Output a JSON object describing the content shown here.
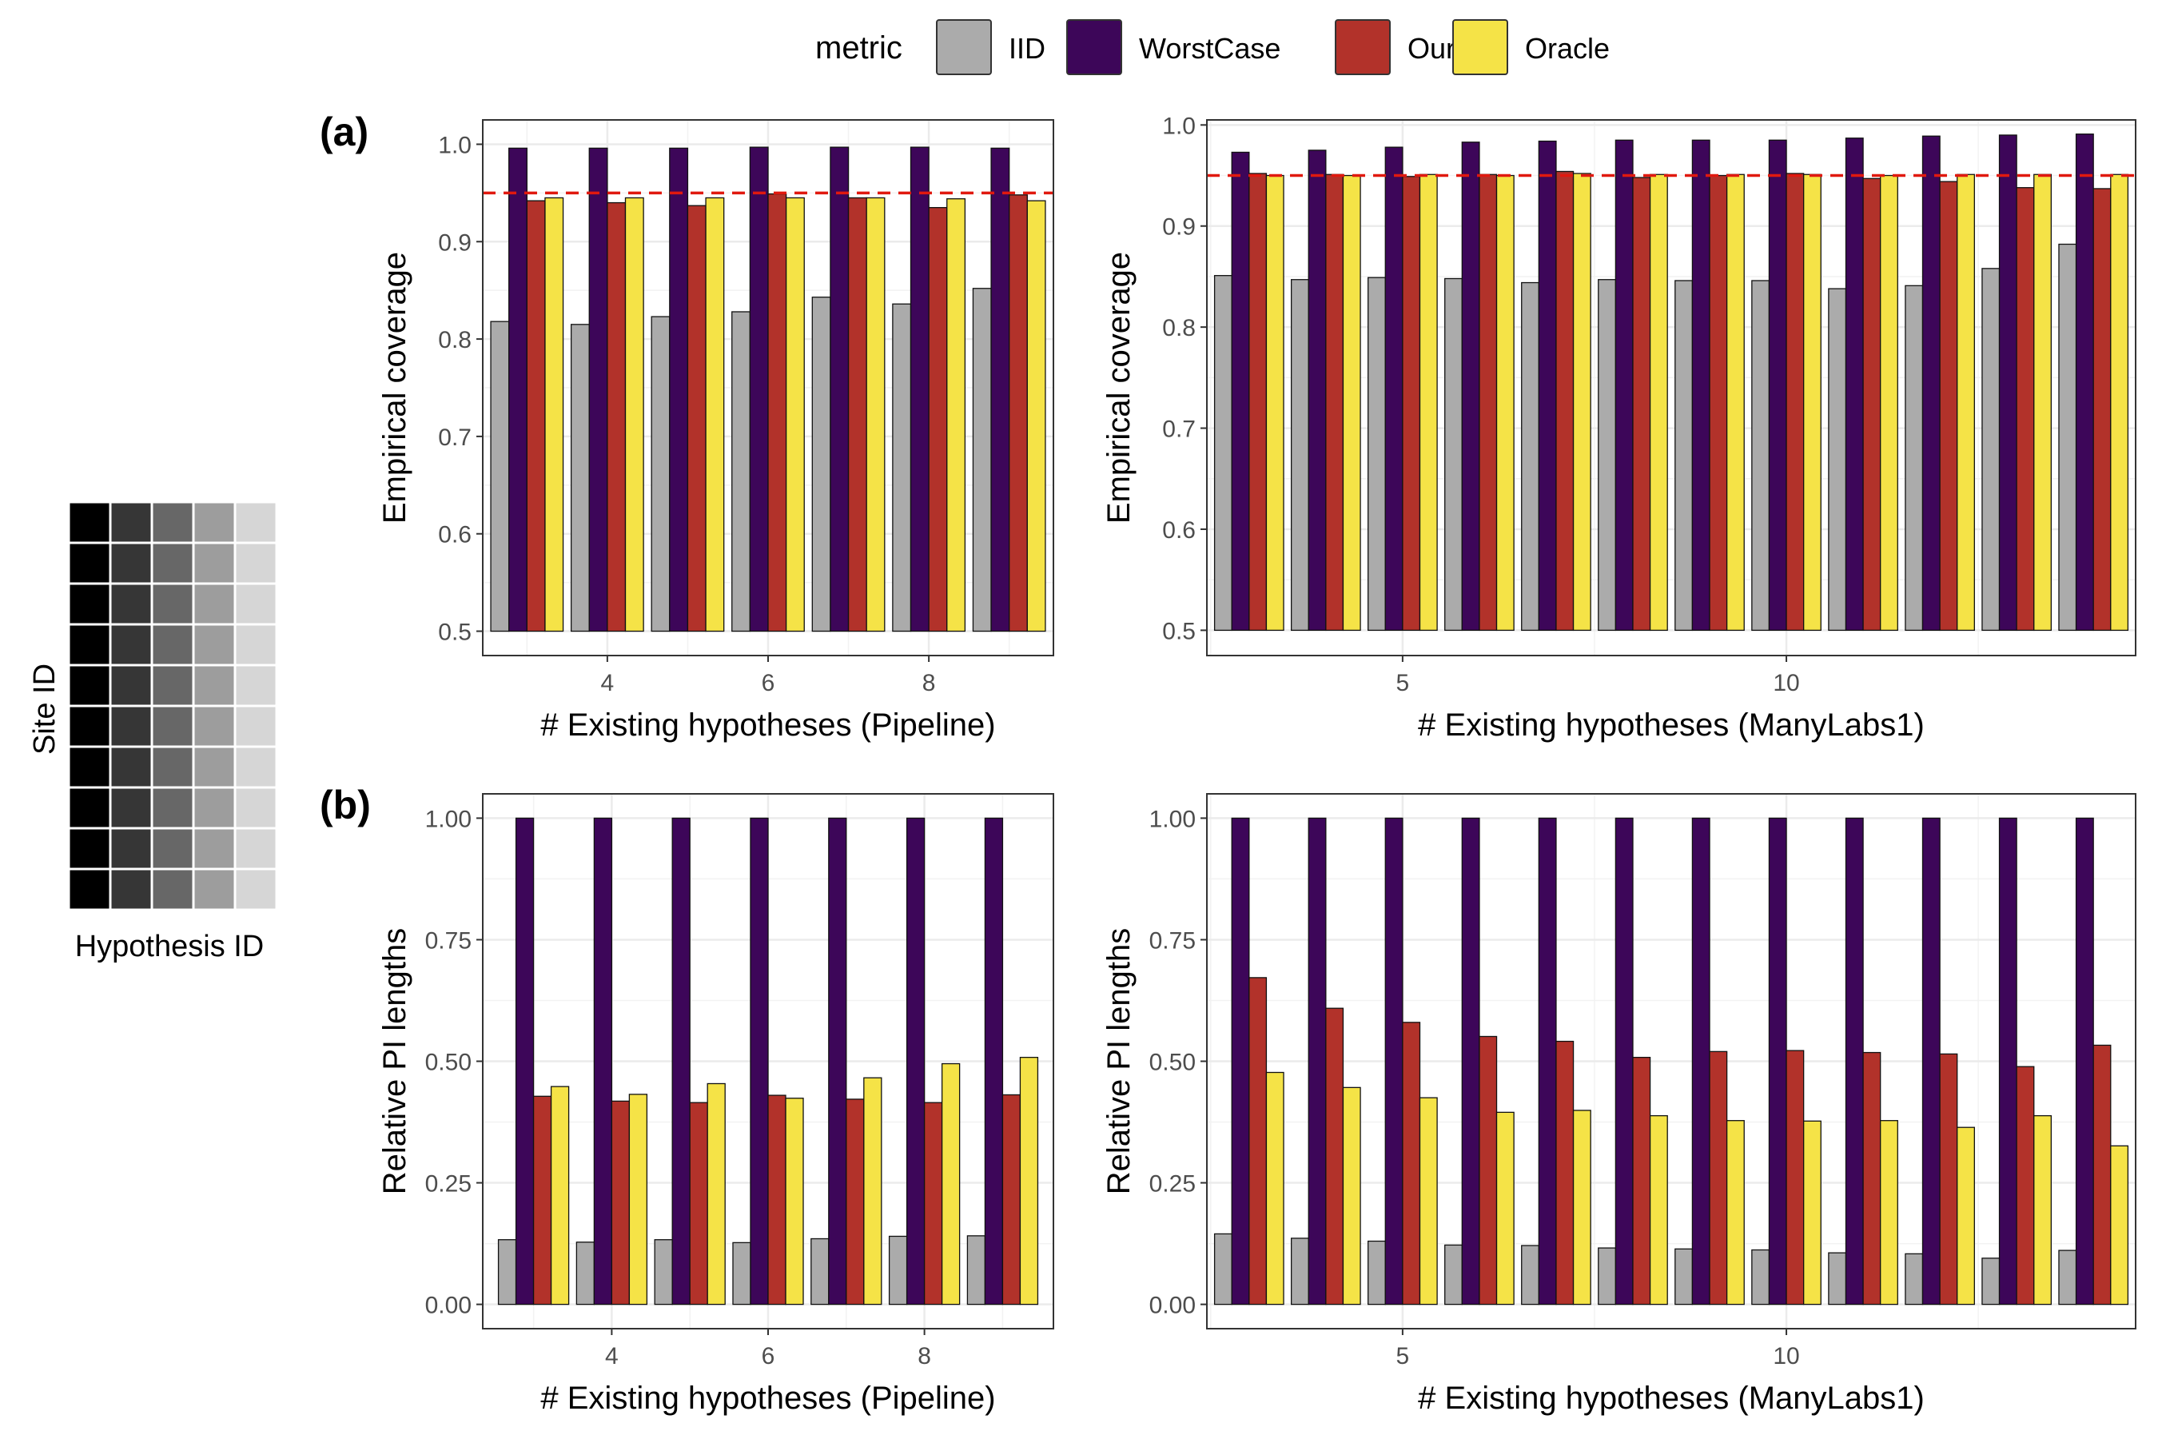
{
  "legend": {
    "title": "metric",
    "items": [
      {
        "name": "IID",
        "color": "#ABABAB"
      },
      {
        "name": "WorstCase",
        "color": "#3D0659"
      },
      {
        "name": "Ours",
        "color": "#B2322A"
      },
      {
        "name": "Oracle",
        "color": "#F5E347"
      }
    ]
  },
  "schematic": {
    "y_label": "Site ID",
    "x_label": "Hypothesis ID",
    "rows": 10,
    "column_shades": [
      "#000000",
      "#363636",
      "#676767",
      "#9D9D9D",
      "#D6D6D6"
    ]
  },
  "panel_labels": {
    "a": "(a)",
    "b": "(b)"
  },
  "chart_data": [
    {
      "id": "a-left",
      "type": "bar",
      "xlabel": "# Existing hypotheses (Pipeline)",
      "ylabel": "Empirical coverage",
      "x": [
        3,
        4,
        5,
        6,
        7,
        8,
        9
      ],
      "xlim": [
        2.45,
        9.55
      ],
      "xticks": [
        4,
        6,
        8
      ],
      "ylim": [
        0.475,
        1.025
      ],
      "yticks": [
        "0.5",
        "0.6",
        "0.7",
        "0.8",
        "0.9",
        "1.0"
      ],
      "reference_line": 0.95,
      "grid": true,
      "series": [
        {
          "name": "IID",
          "values": [
            0.818,
            0.815,
            0.823,
            0.828,
            0.843,
            0.836,
            0.852
          ]
        },
        {
          "name": "WorstCase",
          "values": [
            0.996,
            0.996,
            0.996,
            0.997,
            0.997,
            0.997,
            0.996
          ]
        },
        {
          "name": "Ours",
          "values": [
            0.942,
            0.94,
            0.937,
            0.949,
            0.945,
            0.935,
            0.948
          ]
        },
        {
          "name": "Oracle",
          "values": [
            0.945,
            0.945,
            0.945,
            0.945,
            0.945,
            0.944,
            0.942
          ]
        }
      ]
    },
    {
      "id": "a-right",
      "type": "bar",
      "xlabel": "# Existing hypotheses (ManyLabs1)",
      "ylabel": "Empirical coverage",
      "x": [
        3,
        4,
        5,
        6,
        7,
        8,
        9,
        10,
        11,
        12,
        13,
        14
      ],
      "xlim": [
        2.45,
        14.55
      ],
      "xticks": [
        5,
        10
      ],
      "ylim": [
        0.475,
        1.005
      ],
      "yticks": [
        "0.5",
        "0.6",
        "0.7",
        "0.8",
        "0.9",
        "1.0"
      ],
      "reference_line": 0.95,
      "grid": true,
      "series": [
        {
          "name": "IID",
          "values": [
            0.851,
            0.847,
            0.849,
            0.848,
            0.844,
            0.847,
            0.846,
            0.846,
            0.838,
            0.841,
            0.858,
            0.882
          ]
        },
        {
          "name": "WorstCase",
          "values": [
            0.973,
            0.975,
            0.978,
            0.983,
            0.984,
            0.985,
            0.985,
            0.985,
            0.987,
            0.989,
            0.99,
            0.991
          ]
        },
        {
          "name": "Ours",
          "values": [
            0.952,
            0.951,
            0.949,
            0.951,
            0.954,
            0.948,
            0.95,
            0.952,
            0.947,
            0.944,
            0.938,
            0.937
          ]
        },
        {
          "name": "Oracle",
          "values": [
            0.95,
            0.95,
            0.951,
            0.95,
            0.952,
            0.951,
            0.951,
            0.951,
            0.95,
            0.951,
            0.951,
            0.951
          ]
        }
      ]
    },
    {
      "id": "b-left",
      "type": "bar",
      "xlabel": "# Existing hypotheses (Pipeline)",
      "ylabel": "Relative PI lengths",
      "x": [
        3,
        4,
        5,
        6,
        7,
        8,
        9
      ],
      "xlim": [
        2.35,
        9.65
      ],
      "xticks": [
        4,
        6,
        8
      ],
      "ylim": [
        -0.05,
        1.05
      ],
      "yticks": [
        "0.00",
        "0.25",
        "0.50",
        "0.75",
        "1.00"
      ],
      "grid": true,
      "series": [
        {
          "name": "IID",
          "values": [
            0.133,
            0.128,
            0.133,
            0.127,
            0.135,
            0.14,
            0.141
          ]
        },
        {
          "name": "WorstCase",
          "values": [
            1.0,
            1.0,
            1.0,
            1.0,
            1.0,
            1.0,
            1.0
          ]
        },
        {
          "name": "Ours",
          "values": [
            0.428,
            0.418,
            0.415,
            0.43,
            0.422,
            0.415,
            0.431
          ]
        },
        {
          "name": "Oracle",
          "values": [
            0.448,
            0.432,
            0.454,
            0.424,
            0.466,
            0.495,
            0.508
          ]
        }
      ]
    },
    {
      "id": "b-right",
      "type": "bar",
      "xlabel": "# Existing hypotheses (ManyLabs1)",
      "ylabel": "Relative PI lengths",
      "x": [
        3,
        4,
        5,
        6,
        7,
        8,
        9,
        10,
        11,
        12,
        13,
        14
      ],
      "xlim": [
        2.45,
        14.55
      ],
      "xticks": [
        5,
        10
      ],
      "ylim": [
        -0.05,
        1.05
      ],
      "yticks": [
        "0.00",
        "0.25",
        "0.50",
        "0.75",
        "1.00"
      ],
      "grid": true,
      "series": [
        {
          "name": "IID",
          "values": [
            0.145,
            0.136,
            0.13,
            0.122,
            0.121,
            0.116,
            0.114,
            0.112,
            0.106,
            0.104,
            0.095,
            0.111
          ]
        },
        {
          "name": "WorstCase",
          "values": [
            1.0,
            1.0,
            1.0,
            1.0,
            1.0,
            1.0,
            1.0,
            1.0,
            1.0,
            1.0,
            1.0,
            1.0
          ]
        },
        {
          "name": "Ours",
          "values": [
            0.672,
            0.609,
            0.58,
            0.551,
            0.541,
            0.508,
            0.52,
            0.522,
            0.518,
            0.515,
            0.489,
            0.533
          ]
        },
        {
          "name": "Oracle",
          "values": [
            0.477,
            0.446,
            0.425,
            0.395,
            0.399,
            0.388,
            0.378,
            0.377,
            0.378,
            0.364,
            0.388,
            0.326
          ]
        }
      ]
    }
  ]
}
